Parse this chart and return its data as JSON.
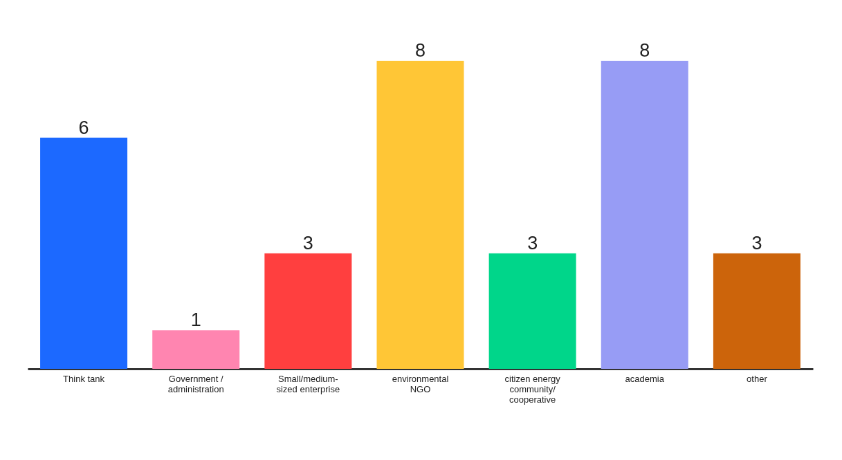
{
  "chart_data": {
    "type": "bar",
    "categories": [
      "Think tank",
      "Government / administration",
      "Small/medium-sized enterprise",
      "environmental NGO",
      "citizen energy community/ cooperative",
      "academia",
      "other"
    ],
    "values": [
      6,
      1,
      3,
      8,
      3,
      8,
      3
    ],
    "colors": [
      "#1c69ff",
      "#ff85b0",
      "#ff3f3f",
      "#ffc636",
      "#00d68a",
      "#979cf5",
      "#cc640b"
    ],
    "data_labels": true
  }
}
